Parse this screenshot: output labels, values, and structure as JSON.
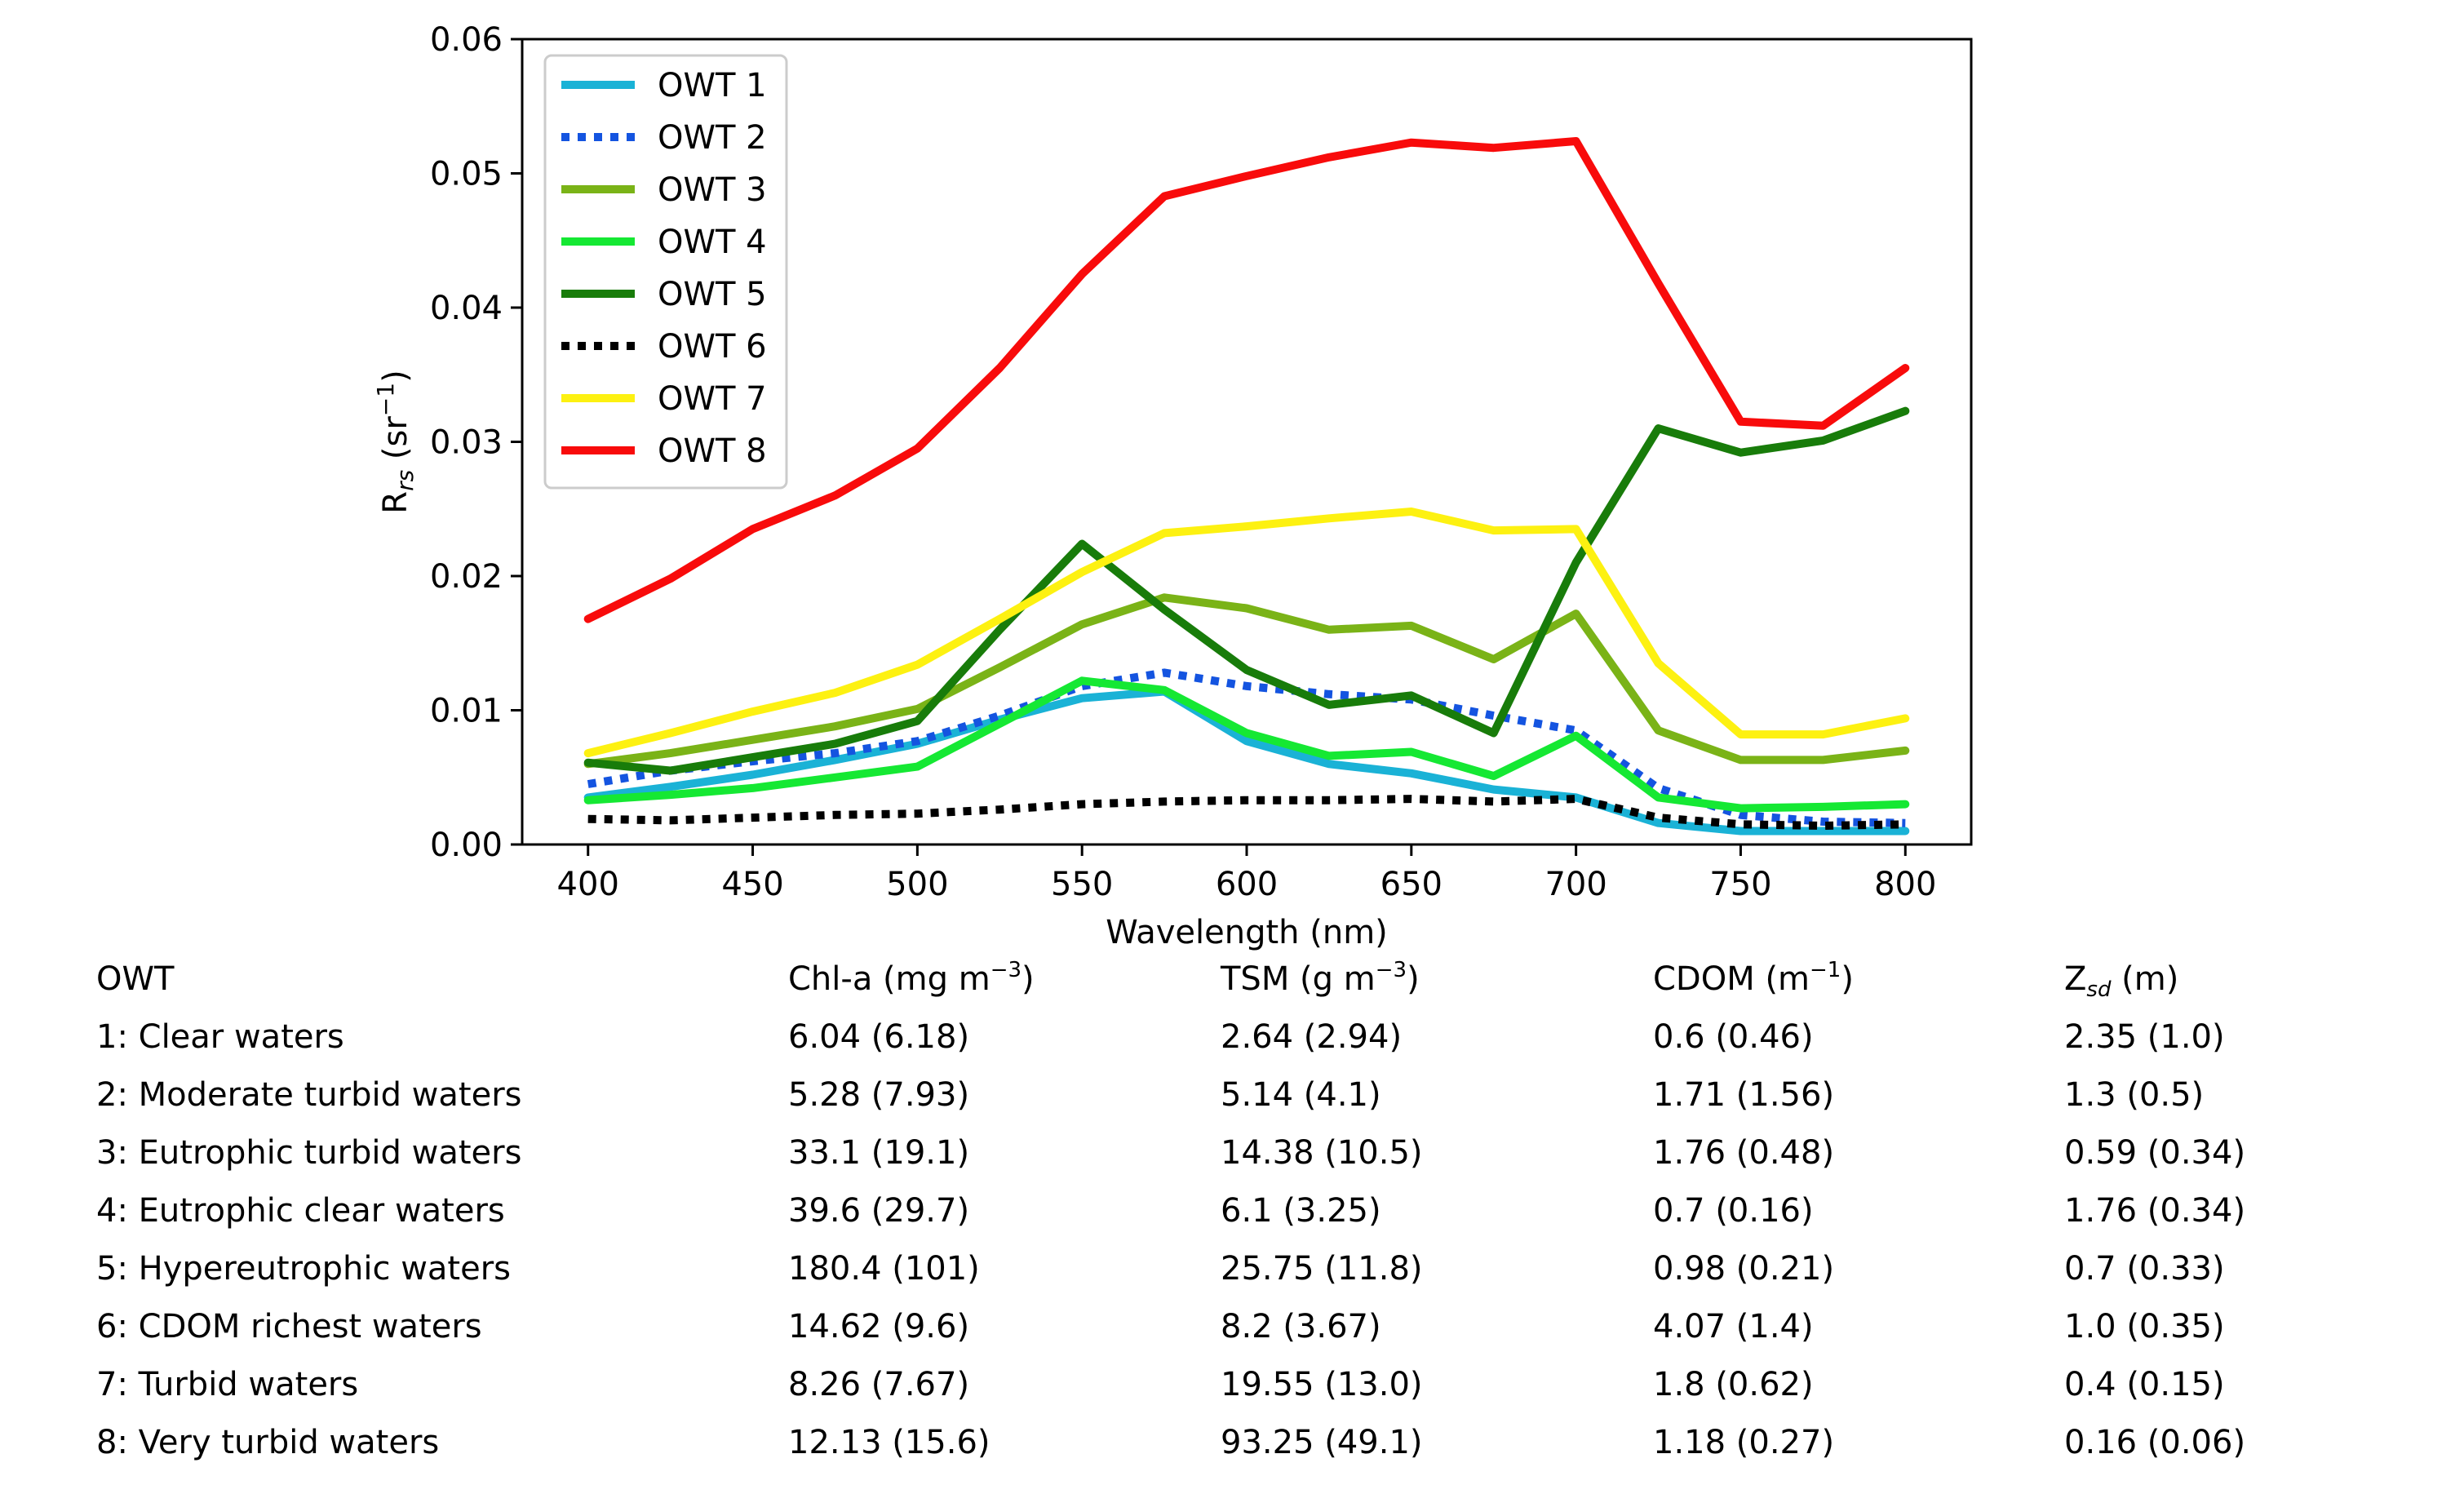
{
  "chart_data": {
    "type": "line",
    "xlabel": "Wavelength (nm)",
    "ylabel": "R",
    "ylabel_sub": "rs",
    "ylabel_unit_prefix": " (sr",
    "ylabel_unit_sup": "−1",
    "ylabel_unit_suffix": ")",
    "xlim": [
      380,
      820
    ],
    "ylim": [
      0,
      0.06
    ],
    "xticks": [
      400,
      450,
      500,
      550,
      600,
      650,
      700,
      750,
      800
    ],
    "xtick_labels": [
      "400",
      "450",
      "500",
      "550",
      "600",
      "650",
      "700",
      "750",
      "800"
    ],
    "yticks": [
      0,
      0.01,
      0.02,
      0.03,
      0.04,
      0.05,
      0.06
    ],
    "ytick_labels": [
      "0.00",
      "0.01",
      "0.02",
      "0.03",
      "0.04",
      "0.05",
      "0.06"
    ],
    "grid": false,
    "legend_position": "top-left",
    "x": [
      400,
      425,
      450,
      475,
      500,
      525,
      550,
      575,
      600,
      625,
      650,
      675,
      700,
      725,
      750,
      775,
      800
    ],
    "series": [
      {
        "name": "OWT 1",
        "color": "#1ab2d6",
        "dash": "solid",
        "values": [
          0.0035,
          0.0043,
          0.0052,
          0.0063,
          0.0075,
          0.0093,
          0.0109,
          0.0114,
          0.0077,
          0.006,
          0.0053,
          0.0041,
          0.0035,
          0.0016,
          0.001,
          0.001,
          0.001
        ]
      },
      {
        "name": "OWT 2",
        "color": "#1454e0",
        "dash": "dotted",
        "values": [
          0.0045,
          0.0055,
          0.0062,
          0.0068,
          0.0077,
          0.0096,
          0.0118,
          0.0128,
          0.0118,
          0.0112,
          0.0108,
          0.0096,
          0.0085,
          0.0042,
          0.0022,
          0.0017,
          0.0016
        ]
      },
      {
        "name": "OWT 3",
        "color": "#7ab317",
        "dash": "solid",
        "values": [
          0.006,
          0.0068,
          0.0078,
          0.0088,
          0.0101,
          0.0132,
          0.0164,
          0.0184,
          0.0176,
          0.016,
          0.0163,
          0.0138,
          0.0172,
          0.0085,
          0.0063,
          0.0063,
          0.007
        ]
      },
      {
        "name": "OWT 4",
        "color": "#15e833",
        "dash": "solid",
        "values": [
          0.0033,
          0.0037,
          0.0042,
          0.005,
          0.0058,
          0.009,
          0.0122,
          0.0115,
          0.0083,
          0.0066,
          0.0069,
          0.0051,
          0.0081,
          0.0035,
          0.0027,
          0.0028,
          0.003
        ]
      },
      {
        "name": "OWT 5",
        "color": "#187c0a",
        "dash": "solid",
        "values": [
          0.0061,
          0.0055,
          0.0065,
          0.0075,
          0.0092,
          0.016,
          0.0224,
          0.0175,
          0.013,
          0.0104,
          0.0111,
          0.0083,
          0.021,
          0.031,
          0.0292,
          0.0301,
          0.0323
        ]
      },
      {
        "name": "OWT 6",
        "color": "#000000",
        "dash": "dotted",
        "values": [
          0.0019,
          0.0018,
          0.002,
          0.0022,
          0.0023,
          0.0026,
          0.003,
          0.0032,
          0.0033,
          0.0033,
          0.0034,
          0.0032,
          0.0034,
          0.002,
          0.0015,
          0.0014,
          0.0015
        ]
      },
      {
        "name": "OWT 7",
        "color": "#fdf111",
        "dash": "solid",
        "values": [
          0.0068,
          0.0083,
          0.0099,
          0.0113,
          0.0134,
          0.0168,
          0.0203,
          0.0232,
          0.0237,
          0.0243,
          0.0248,
          0.0234,
          0.0235,
          0.0135,
          0.0082,
          0.0082,
          0.0094
        ]
      },
      {
        "name": "OWT 8",
        "color": "#f80b0b",
        "dash": "solid",
        "values": [
          0.0168,
          0.0198,
          0.0235,
          0.026,
          0.0295,
          0.0355,
          0.0425,
          0.0483,
          0.0498,
          0.0512,
          0.0523,
          0.0519,
          0.0524,
          0.0418,
          0.0315,
          0.0312,
          0.0355
        ]
      }
    ]
  },
  "table": {
    "headers": [
      {
        "text": "OWT"
      },
      {
        "text": "Chl-a (mg m",
        "sup": "−3",
        "tail": ")"
      },
      {
        "text": "TSM (g m",
        "sup": "−3",
        "tail": ")"
      },
      {
        "text": "CDOM (m",
        "sup": "−1",
        "tail": ")"
      },
      {
        "text": "Z",
        "sub": "sd",
        "tail": " (m)"
      }
    ],
    "rows": [
      [
        "1: Clear waters",
        "6.04 (6.18)",
        "2.64 (2.94)",
        "0.6 (0.46)",
        "2.35 (1.0)"
      ],
      [
        "2: Moderate turbid waters",
        "5.28 (7.93)",
        "5.14 (4.1)",
        "1.71 (1.56)",
        "1.3 (0.5)"
      ],
      [
        "3: Eutrophic turbid waters",
        "33.1 (19.1)",
        "14.38 (10.5)",
        "1.76 (0.48)",
        "0.59 (0.34)"
      ],
      [
        "4: Eutrophic clear waters",
        "39.6 (29.7)",
        "6.1 (3.25)",
        "0.7 (0.16)",
        "1.76 (0.34)"
      ],
      [
        "5: Hypereutrophic waters",
        "180.4 (101)",
        "25.75 (11.8)",
        "0.98 (0.21)",
        "0.7 (0.33)"
      ],
      [
        "6: CDOM richest waters",
        "14.62 (9.6)",
        "8.2 (3.67)",
        "4.07 (1.4)",
        "1.0 (0.35)"
      ],
      [
        "7: Turbid waters",
        "8.26 (7.67)",
        "19.55 (13.0)",
        "1.8 (0.62)",
        "0.4 (0.15)"
      ],
      [
        "8: Very turbid waters",
        "12.13 (15.6)",
        "93.25 (49.1)",
        "1.18 (0.27)",
        "0.16 (0.06)"
      ]
    ]
  }
}
